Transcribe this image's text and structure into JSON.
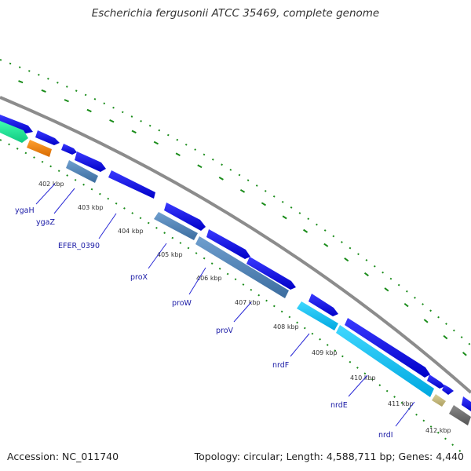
{
  "header": {
    "title": "Escherichia fergusonii ATCC 35469, complete genome"
  },
  "footer": {
    "accession": "Accession: NC_011740",
    "summary": "Topology: circular; Length: 4,588,711 bp; Genes: 4,440"
  },
  "colors": {
    "backbone": "#8c8c8c",
    "gc_dots": "#1a8c1a",
    "cds_forward": "#0b0bf0",
    "cds_reverse": "#4a7fb5",
    "leader_line": "#2a2ad6"
  },
  "ticks": [
    {
      "label": "402 kbp"
    },
    {
      "label": "403 kbp"
    },
    {
      "label": "404 kbp"
    },
    {
      "label": "405 kbp"
    },
    {
      "label": "406 kbp"
    },
    {
      "label": "407 kbp"
    },
    {
      "label": "408 kbp"
    },
    {
      "label": "409 kbp"
    },
    {
      "label": "410 kbp"
    },
    {
      "label": "411 kbp"
    },
    {
      "label": "412 kbp"
    }
  ],
  "gene_labels": [
    {
      "label": "ygaH"
    },
    {
      "label": "ygaZ"
    },
    {
      "label": "EFER_0390"
    },
    {
      "label": "proX"
    },
    {
      "label": "proW"
    },
    {
      "label": "proV"
    },
    {
      "label": "nrdF"
    },
    {
      "label": "nrdE"
    },
    {
      "label": "nrdI"
    }
  ]
}
